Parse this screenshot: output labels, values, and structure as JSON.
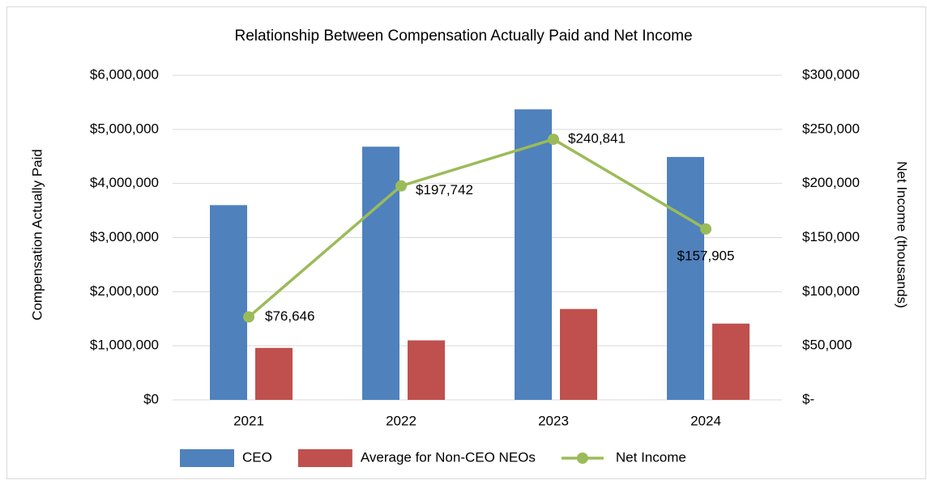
{
  "chart_data": {
    "type": "bar",
    "title": "Relationship Between Compensation Actually Paid and Net Income",
    "ylabel": "Compensation Actually Paid",
    "y2label": "Net Income (thousands)",
    "categories": [
      "2021",
      "2022",
      "2023",
      "2024"
    ],
    "series": [
      {
        "name": "CEO",
        "type": "bar",
        "color": "#4f81bd",
        "values": [
          3600000,
          4680000,
          5370000,
          4490000
        ]
      },
      {
        "name": "Average for Non-CEO NEOs",
        "type": "bar",
        "color": "#c0504d",
        "values": [
          960000,
          1100000,
          1680000,
          1410000
        ]
      },
      {
        "name": "Net Income",
        "type": "line",
        "axis": "y2",
        "color": "#9bbb59",
        "values": [
          76646,
          197742,
          240841,
          157905
        ],
        "value_labels": [
          "$76,646",
          "$197,742",
          "$240,841",
          "$157,905"
        ]
      }
    ],
    "ylim": [
      0,
      6000000
    ],
    "yticks": [
      {
        "value": 0,
        "label": "$0"
      },
      {
        "value": 1000000,
        "label": "$1,000,000"
      },
      {
        "value": 2000000,
        "label": "$2,000,000"
      },
      {
        "value": 3000000,
        "label": "$3,000,000"
      },
      {
        "value": 4000000,
        "label": "$4,000,000"
      },
      {
        "value": 5000000,
        "label": "$5,000,000"
      },
      {
        "value": 6000000,
        "label": "$6,000,000"
      }
    ],
    "y2lim": [
      0,
      300000
    ],
    "y2ticks": [
      {
        "value": 0,
        "label": "$-"
      },
      {
        "value": 50000,
        "label": "$50,000"
      },
      {
        "value": 100000,
        "label": "$100,000"
      },
      {
        "value": 150000,
        "label": "$150,000"
      },
      {
        "value": 200000,
        "label": "$200,000"
      },
      {
        "value": 250000,
        "label": "$250,000"
      },
      {
        "value": 300000,
        "label": "$300,000"
      }
    ],
    "grid": true,
    "legend": "bottom"
  }
}
